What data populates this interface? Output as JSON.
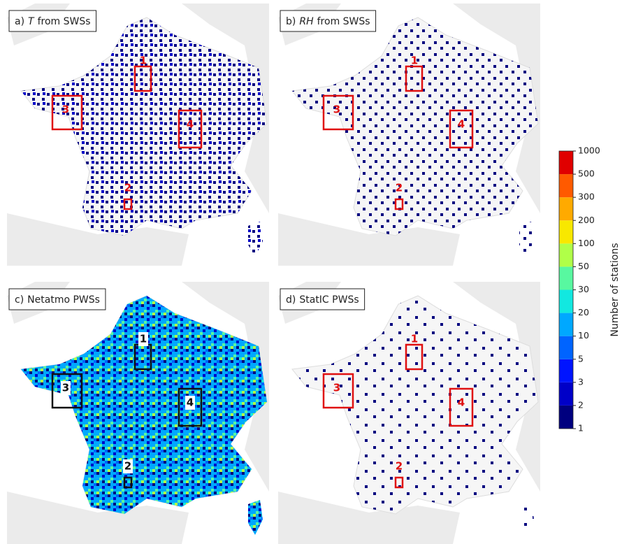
{
  "panels": [
    {
      "label": "a)",
      "variable": "T",
      "text": "from SWSs",
      "box_color": "#e01010",
      "fill": "sparse",
      "boxes": [
        "1",
        "2",
        "3",
        "4"
      ]
    },
    {
      "label": "b)",
      "variable": "RH",
      "text": "from SWSs",
      "box_color": "#e01010",
      "fill": "sparser",
      "boxes": [
        "1",
        "2",
        "3",
        "4"
      ]
    },
    {
      "label": "c)",
      "text": "Netatmo PWSs",
      "box_color": "#111111",
      "fill": "dense",
      "boxes": [
        "1",
        "2",
        "3",
        "4"
      ]
    },
    {
      "label": "d)",
      "text": "StatIC PWSs",
      "box_color": "#e01010",
      "fill": "sparsest",
      "boxes": [
        "1",
        "2",
        "3",
        "4"
      ]
    }
  ],
  "colorbar": {
    "label": "Number of stations",
    "ticks": [
      1,
      2,
      3,
      5,
      10,
      20,
      30,
      50,
      100,
      200,
      300,
      500,
      1000
    ],
    "colors": [
      "#00007f",
      "#0000c8",
      "#0014ff",
      "#0064ff",
      "#00a8ff",
      "#12e8e0",
      "#58f8a0",
      "#b0ff48",
      "#f8e800",
      "#ffaa00",
      "#ff5a00",
      "#e00000",
      "#800000"
    ]
  }
}
